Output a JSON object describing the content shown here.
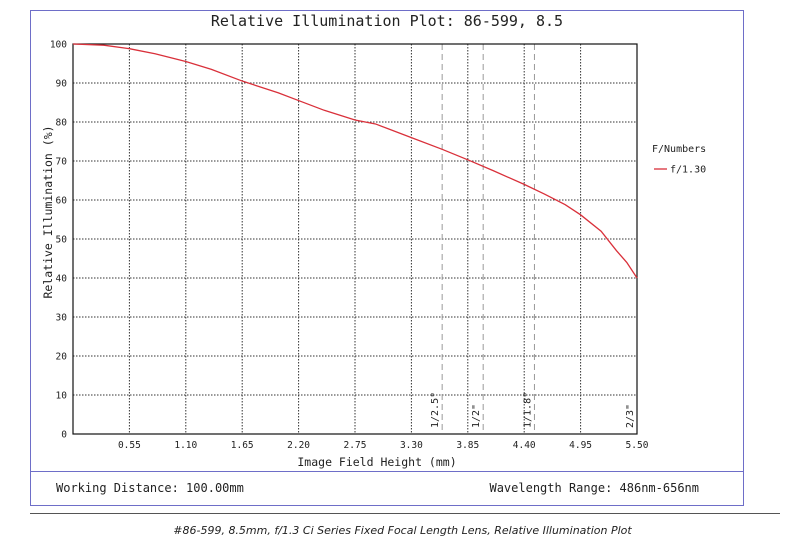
{
  "caption": "#86-599, 8.5mm, f/1.3 Ci Series Fixed Focal Length Lens, Relative Illumination Plot",
  "footer": {
    "working_distance": "Working Distance: 100.00mm",
    "wavelength_range": "Wavelength Range: 486nm-656nm"
  },
  "colors": {
    "frame": "#6e6ec8",
    "series": "#d9303a"
  },
  "chart_data": {
    "type": "line",
    "title": "Relative Illumination Plot: 86-599, 8.5",
    "xlabel": "Image Field Height (mm)",
    "ylabel": "Relative Illumination (%)",
    "xlim": [
      0,
      5.5
    ],
    "ylim": [
      0,
      100
    ],
    "x_ticks": [
      "0.55",
      "1.10",
      "1.65",
      "2.20",
      "2.75",
      "3.30",
      "3.85",
      "4.40",
      "4.95",
      "5.50"
    ],
    "y_ticks": [
      "0",
      "10",
      "20",
      "30",
      "40",
      "50",
      "60",
      "70",
      "80",
      "90",
      "100"
    ],
    "x_tick_values": [
      0.55,
      1.1,
      1.65,
      2.2,
      2.75,
      3.3,
      3.85,
      4.4,
      4.95,
      5.5
    ],
    "y_tick_values": [
      0,
      10,
      20,
      30,
      40,
      50,
      60,
      70,
      80,
      90,
      100
    ],
    "grid": true,
    "legend": {
      "title": "F/Numbers",
      "position": "right"
    },
    "sensor_formats": [
      {
        "label": "1/2.5\"",
        "x": 3.6
      },
      {
        "label": "1/2\"",
        "x": 4.0
      },
      {
        "label": "1/1.8\"",
        "x": 4.5
      },
      {
        "label": "2/3\"",
        "x": 5.5
      }
    ],
    "series": [
      {
        "name": "f/1.30",
        "x": [
          0,
          0.3,
          0.55,
          0.8,
          1.1,
          1.35,
          1.65,
          2.0,
          2.2,
          2.45,
          2.75,
          2.95,
          3.3,
          3.6,
          3.85,
          4.1,
          4.4,
          4.6,
          4.8,
          4.95,
          5.15,
          5.3,
          5.4,
          5.5
        ],
        "y": [
          100,
          99.7,
          98.8,
          97.5,
          95.5,
          93.5,
          90.5,
          87.5,
          85.5,
          83,
          80.5,
          79.5,
          76,
          73,
          70.3,
          67.5,
          64,
          61.5,
          58.8,
          56.2,
          52,
          47,
          44,
          40
        ]
      }
    ]
  }
}
